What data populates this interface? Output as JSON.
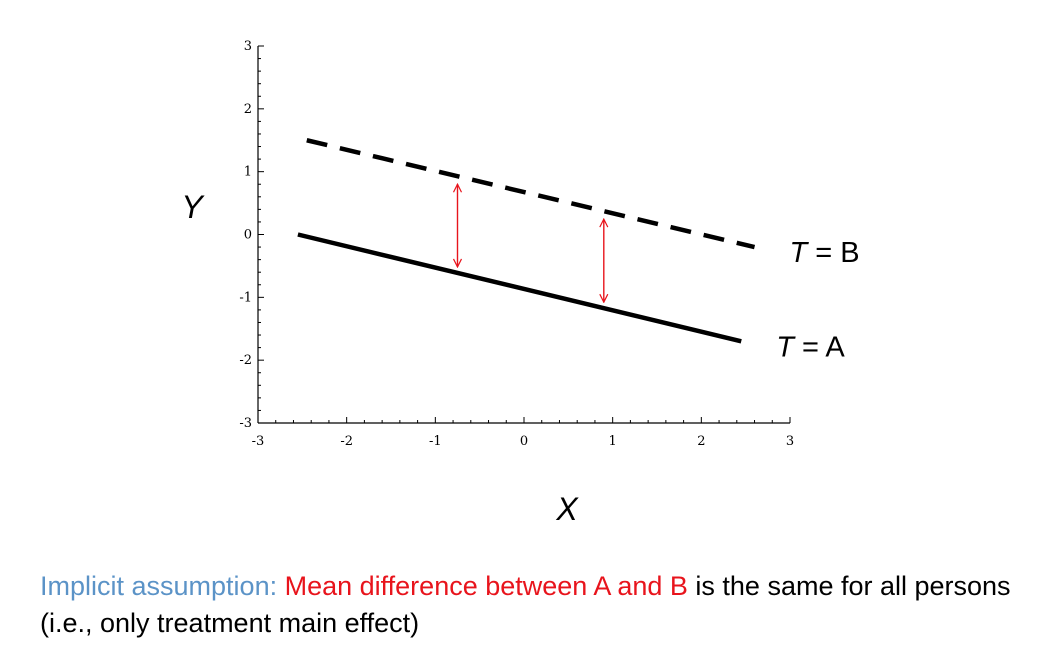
{
  "chart_data": {
    "type": "line",
    "xlabel": "X",
    "ylabel": "Y",
    "xlim": [
      -3,
      3
    ],
    "ylim": [
      -3,
      3
    ],
    "x_ticks": [
      "-3",
      "-2",
      "-1",
      "0",
      "1",
      "2",
      "3"
    ],
    "y_ticks": [
      "3",
      "2",
      "1",
      "0",
      "-1",
      "-2",
      "-3"
    ],
    "series": [
      {
        "name": "T = B",
        "label_var": "T",
        "label_rest": " = B",
        "style": "dashed",
        "color": "#000000",
        "x": [
          -2.45,
          2.6
        ],
        "y": [
          1.5,
          -0.2
        ]
      },
      {
        "name": "T = A",
        "label_var": "T",
        "label_rest": " = A",
        "style": "solid",
        "color": "#000000",
        "x": [
          -2.55,
          2.45
        ],
        "y": [
          0.0,
          -1.7
        ]
      }
    ],
    "annotations": [
      {
        "type": "double-arrow",
        "color": "#e8141c",
        "x": -0.75
      },
      {
        "type": "double-arrow",
        "color": "#e8141c",
        "x": 0.9
      }
    ],
    "grid": false
  },
  "caption": {
    "lead": "Implicit assumption: ",
    "emphasis": "Mean difference between A and B",
    "rest": " is the same for all persons (i.e., only treatment main effect)"
  }
}
